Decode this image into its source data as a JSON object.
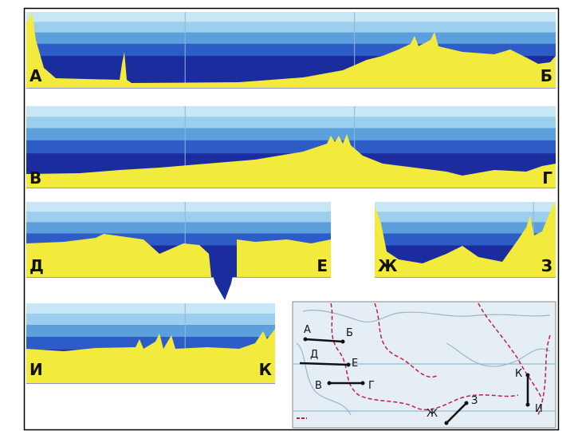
{
  "profiles": [
    {
      "start": "А",
      "end": "Б"
    },
    {
      "start": "В",
      "end": "Г"
    },
    {
      "start": "Д",
      "end": "Е"
    },
    {
      "start": "Ж",
      "end": "З"
    },
    {
      "start": "И",
      "end": "К"
    }
  ],
  "map": {
    "labels": [
      "А",
      "Б",
      "Д",
      "Е",
      "В",
      "Г",
      "К",
      "И",
      "Ж",
      "З"
    ]
  }
}
